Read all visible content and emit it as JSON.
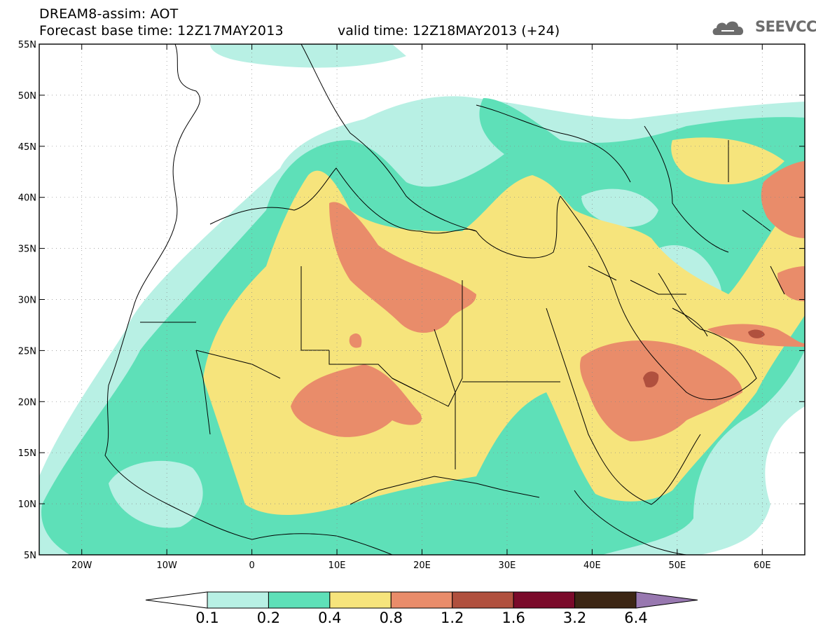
{
  "header": {
    "title": "DREAM8-assim: AOT",
    "base_time": "Forecast base time: 12Z17MAY2013",
    "valid_time": "valid time: 12Z18MAY2013 (+24)",
    "logo_text": "SEEVCCC"
  },
  "map": {
    "lon_range": [
      -25,
      65
    ],
    "lat_range": [
      5,
      55
    ],
    "lat_ticks": [
      {
        "value": 55,
        "label": "55N"
      },
      {
        "value": 50,
        "label": "50N"
      },
      {
        "value": 45,
        "label": "45N"
      },
      {
        "value": 40,
        "label": "40N"
      },
      {
        "value": 35,
        "label": "35N"
      },
      {
        "value": 30,
        "label": "30N"
      },
      {
        "value": 25,
        "label": "25N"
      },
      {
        "value": 20,
        "label": "20N"
      },
      {
        "value": 15,
        "label": "15N"
      },
      {
        "value": 10,
        "label": "10N"
      },
      {
        "value": 5,
        "label": "5N"
      }
    ],
    "lon_ticks": [
      {
        "value": -20,
        "label": "20W"
      },
      {
        "value": -10,
        "label": "10W"
      },
      {
        "value": 0,
        "label": "0"
      },
      {
        "value": 10,
        "label": "10E"
      },
      {
        "value": 20,
        "label": "20E"
      },
      {
        "value": 30,
        "label": "30E"
      },
      {
        "value": 40,
        "label": "40E"
      },
      {
        "value": 50,
        "label": "50E"
      },
      {
        "value": 60,
        "label": "60E"
      }
    ],
    "grid": true
  },
  "colorbar": {
    "levels": [
      "0.1",
      "0.2",
      "0.4",
      "0.8",
      "1.2",
      "1.6",
      "3.2",
      "6.4"
    ],
    "colors": [
      "#ffffff",
      "#b8f0e4",
      "#5ee0b8",
      "#f6e47c",
      "#e98c6a",
      "#b0503e",
      "#7a0a2a",
      "#3c2614",
      "#9878b0"
    ]
  }
}
